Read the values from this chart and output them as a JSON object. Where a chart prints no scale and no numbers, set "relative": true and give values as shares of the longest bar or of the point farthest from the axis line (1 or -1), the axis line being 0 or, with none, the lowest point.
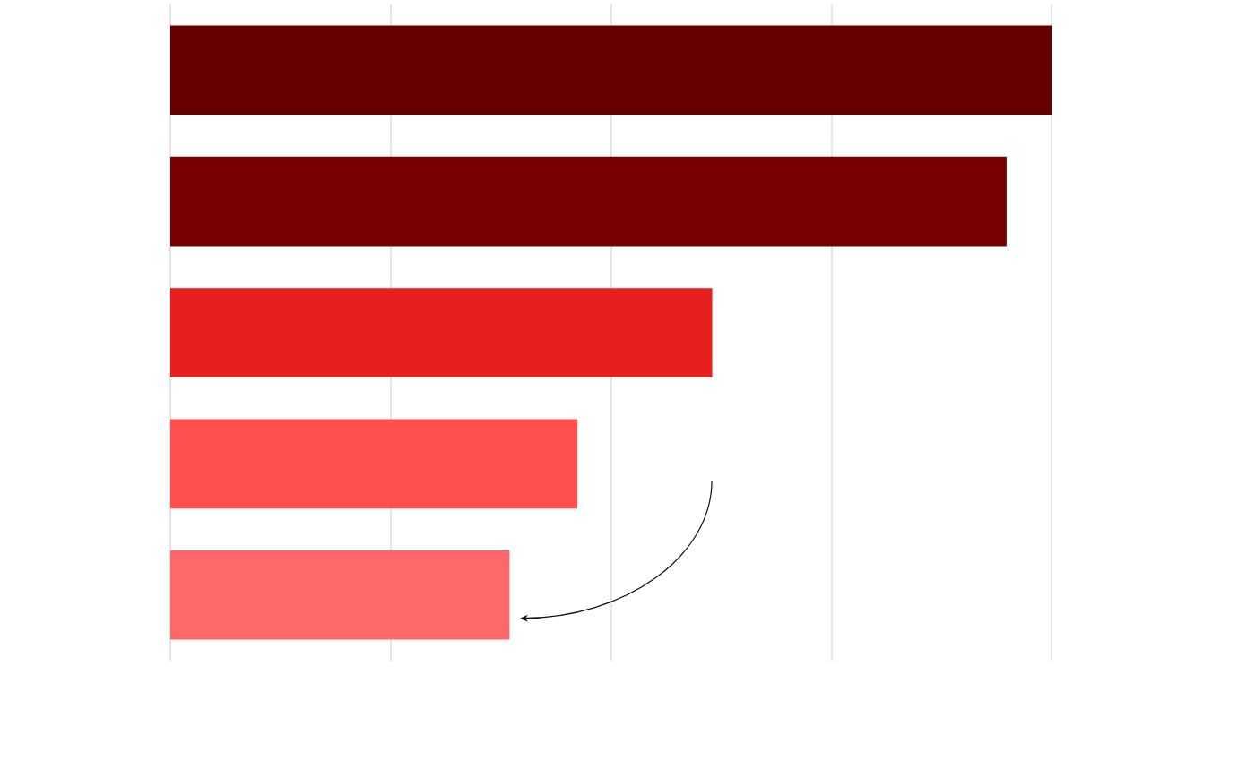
{
  "chart_data": {
    "type": "bar",
    "orientation": "horizontal",
    "relative": true,
    "categories": [
      null,
      null,
      null,
      null,
      null
    ],
    "values": [
      1,
      0.949,
      0.615,
      0.462,
      0.385
    ],
    "colors": [
      "#660000",
      "#770000",
      "#e5201f",
      "#ff5050",
      "#ff6868"
    ],
    "grid": "x"
  }
}
